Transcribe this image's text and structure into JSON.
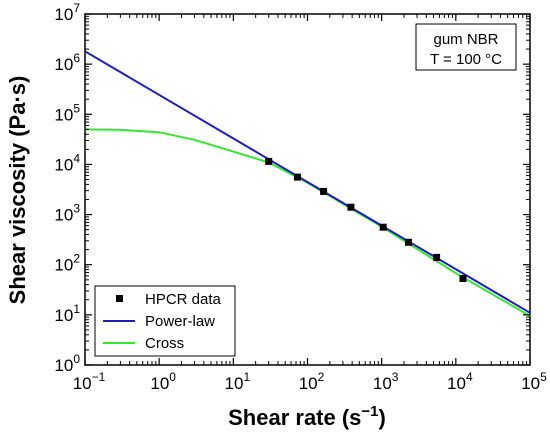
{
  "chart_data": {
    "type": "line",
    "xlabel_main": "Shear rate (s",
    "xlabel_exp": "−1",
    "xlabel_close": ")",
    "ylabel": "Shear viscosity (Pa·s)",
    "x_scale": "log",
    "y_scale": "log",
    "xlim": [
      0.1,
      100000
    ],
    "ylim": [
      1,
      10000000
    ],
    "x_ticks": [
      {
        "base": "10",
        "exp": "−1"
      },
      {
        "base": "10",
        "exp": "0"
      },
      {
        "base": "10",
        "exp": "1"
      },
      {
        "base": "10",
        "exp": "2"
      },
      {
        "base": "10",
        "exp": "3"
      },
      {
        "base": "10",
        "exp": "4"
      },
      {
        "base": "10",
        "exp": "5"
      }
    ],
    "y_ticks": [
      {
        "base": "10",
        "exp": "0"
      },
      {
        "base": "10",
        "exp": "1"
      },
      {
        "base": "10",
        "exp": "2"
      },
      {
        "base": "10",
        "exp": "3"
      },
      {
        "base": "10",
        "exp": "4"
      },
      {
        "base": "10",
        "exp": "5"
      },
      {
        "base": "10",
        "exp": "6"
      },
      {
        "base": "10",
        "exp": "7"
      }
    ],
    "annotation": {
      "line1": "gum NBR",
      "line2": "T = 100 °C"
    },
    "legend_position": "bottom-left",
    "grid": false,
    "series": [
      {
        "name": "HPCR data",
        "kind": "scatter",
        "color": "#000000",
        "marker": "square",
        "points": [
          [
            30,
            11500
          ],
          [
            73,
            5600
          ],
          [
            165,
            2900
          ],
          [
            385,
            1400
          ],
          [
            1050,
            560
          ],
          [
            2300,
            280
          ],
          [
            5500,
            140
          ],
          [
            12500,
            53
          ]
        ]
      },
      {
        "name": "Power-law",
        "kind": "line",
        "color": "#1f1fb4",
        "points": [
          [
            0.1,
            1800000
          ],
          [
            100000,
            11
          ]
        ]
      },
      {
        "name": "Cross",
        "kind": "line",
        "color": "#33e633",
        "points": [
          [
            0.1,
            50000
          ],
          [
            0.3,
            49000
          ],
          [
            1,
            44000
          ],
          [
            3,
            31000
          ],
          [
            10,
            18000
          ],
          [
            30,
            11000
          ],
          [
            100,
            4300
          ],
          [
            1000,
            570
          ],
          [
            10000,
            68
          ],
          [
            100000,
            9.5
          ]
        ]
      }
    ]
  }
}
